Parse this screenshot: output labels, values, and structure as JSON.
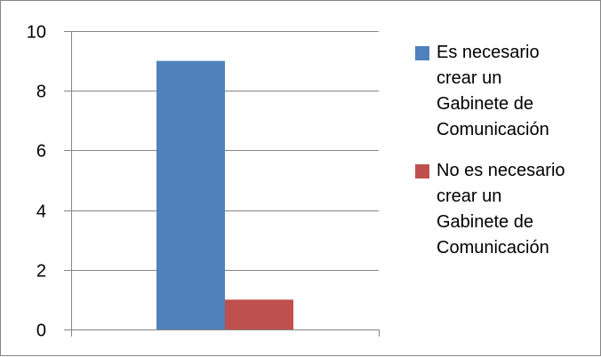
{
  "chart_data": {
    "type": "bar",
    "categories": [
      ""
    ],
    "series": [
      {
        "name": "Es necesario crear un Gabinete de Comunicación",
        "values": [
          9
        ],
        "color": "#4F81BD"
      },
      {
        "name": "No es necesario crear un Gabinete de Comunicación",
        "values": [
          1
        ],
        "color": "#C0504D"
      }
    ],
    "ylim": [
      0,
      10
    ],
    "yticks": [
      0,
      2,
      4,
      6,
      8,
      10
    ],
    "grid": true,
    "legend_position": "right"
  },
  "legend": {
    "items": [
      {
        "label": "Es necesario\ncrear un\nGabinete de\nComunicación",
        "color": "#4F81BD"
      },
      {
        "label": "No es necesario\ncrear un\nGabinete de\nComunicación",
        "color": "#C0504D"
      }
    ]
  }
}
